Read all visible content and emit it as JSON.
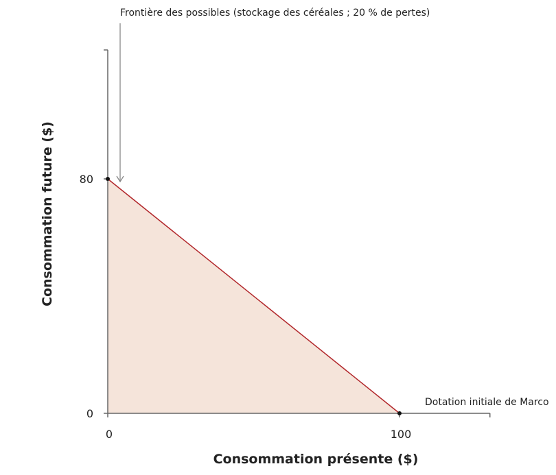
{
  "chart_data": {
    "type": "area",
    "xlabel": "Consommation présente ($)",
    "ylabel": "Consommation future ($)",
    "xlim": [
      0,
      131
    ],
    "ylim": [
      0,
      124
    ],
    "x_ticks": [
      0,
      100
    ],
    "y_ticks": [
      0,
      80
    ],
    "grid": false,
    "series": [
      {
        "points": [
          [
            0,
            80
          ],
          [
            100,
            0
          ]
        ],
        "line_color": "#b2282c",
        "fill_color": "#f5e4da"
      }
    ],
    "points": [
      {
        "x": 0,
        "y": 80
      },
      {
        "x": 100,
        "y": 0
      }
    ],
    "annotations": [
      {
        "text": "Frontière des possibles (stockage des céréales ; 20 % de pertes)",
        "target": [
          0,
          80
        ],
        "arrow": true
      },
      {
        "text": "Dotation initiale de Marco",
        "target": [
          100,
          0
        ]
      }
    ]
  }
}
